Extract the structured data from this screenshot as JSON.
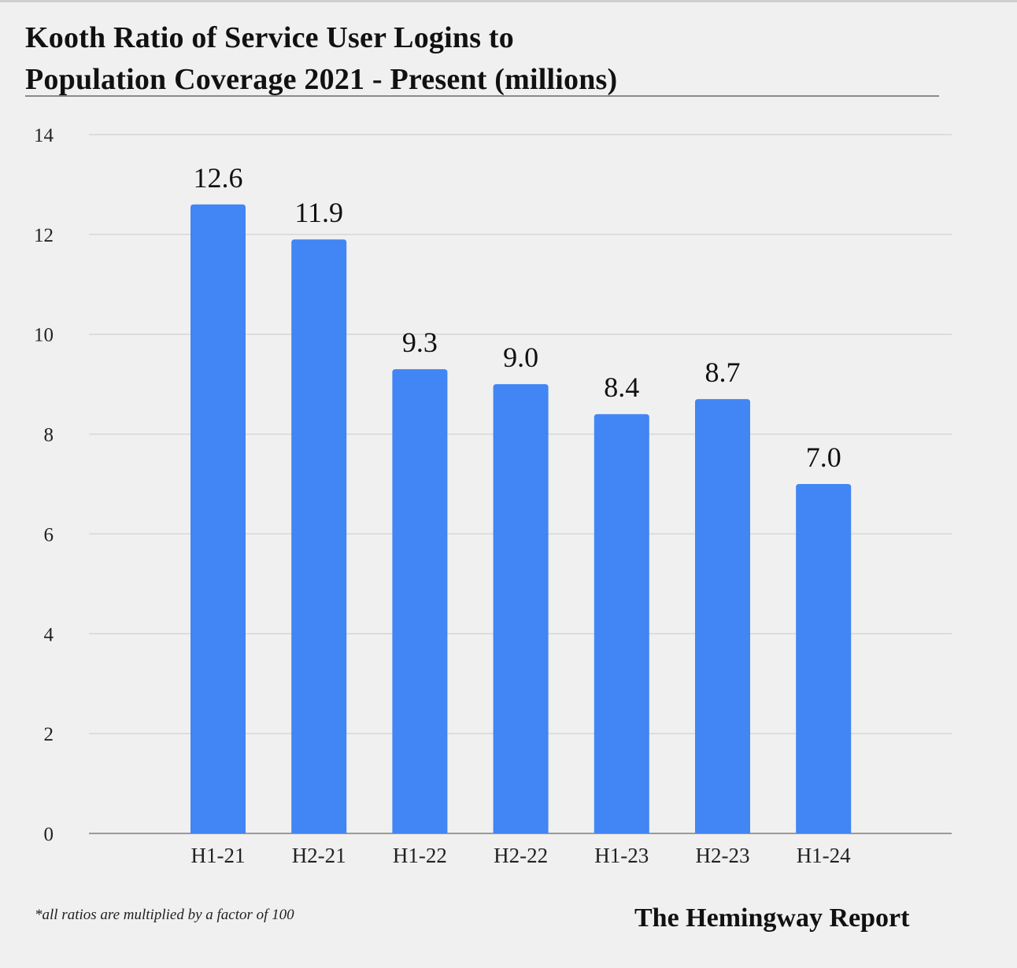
{
  "chart_data": {
    "type": "bar",
    "title": "Kooth Ratio of Service User Logins to Population Coverage 2021 - Present (millions)",
    "title_lines": [
      "Kooth Ratio of Service User Logins to",
      "Population Coverage 2021 - Present (millions)"
    ],
    "xlabel": "",
    "ylabel": "",
    "categories": [
      "H1-21",
      "H2-21",
      "H1-22",
      "H2-22",
      "H1-23",
      "H2-23",
      "H1-24"
    ],
    "values": [
      12.6,
      11.9,
      9.3,
      9.0,
      8.4,
      8.7,
      7.0
    ],
    "data_labels": [
      "12.6",
      "11.9",
      "9.3",
      "9.0",
      "8.4",
      "8.7",
      "7.0"
    ],
    "ylim": [
      0,
      14
    ],
    "yticks": [
      0,
      2,
      4,
      6,
      8,
      10,
      12,
      14
    ],
    "grid": true,
    "legend": "none",
    "bar_color": "#4285f4",
    "footnote": "*all ratios are multiplied by a factor of 100",
    "source": "The Hemingway Report"
  }
}
